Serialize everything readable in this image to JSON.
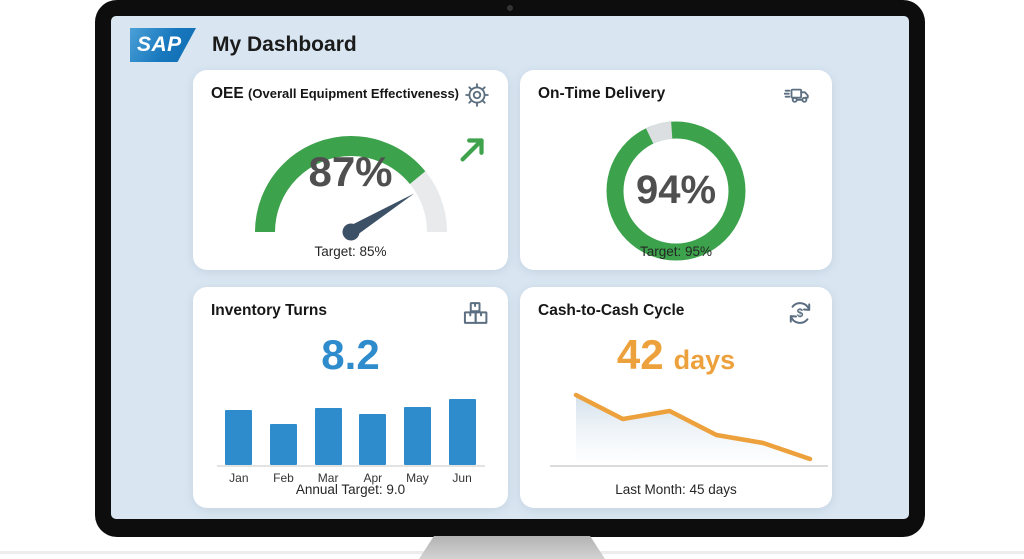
{
  "header": {
    "brand": "SAP",
    "title": "My Dashboard"
  },
  "cards": {
    "oee": {
      "title": "OEE",
      "subtitle": "(Overall Equipment Effectiveness)",
      "icon": "gear-icon",
      "value": "87%",
      "target": "Target: 85%"
    },
    "delivery": {
      "title": "On-Time Delivery",
      "icon": "truck-icon",
      "value": "94%",
      "target": "Target: 95%"
    },
    "inventory": {
      "title": "Inventory Turns",
      "icon": "boxes-icon",
      "value": "8.2",
      "target": "Annual Target: 9.0"
    },
    "cash": {
      "title": "Cash-to-Cash Cycle",
      "icon": "dollar-cycle-icon",
      "value": "42",
      "unit": "days",
      "target": "Last Month: 45 days"
    }
  },
  "chart_data": [
    {
      "id": "oee-gauge",
      "type": "gauge",
      "title": "OEE (Overall Equipment Effectiveness)",
      "value": 87,
      "min": 0,
      "max": 100,
      "unit": "%",
      "target": 85
    },
    {
      "id": "on-time-delivery-donut",
      "type": "donut",
      "title": "On-Time Delivery",
      "value": 94,
      "max": 100,
      "unit": "%",
      "target": 95
    },
    {
      "id": "inventory-turns-bars",
      "type": "bar",
      "title": "Inventory Turns",
      "categories": [
        "Jan",
        "Feb",
        "Mar",
        "Apr",
        "May",
        "Jun"
      ],
      "values": [
        7.5,
        5.6,
        7.8,
        7.0,
        8.0,
        9.0
      ],
      "current": 8.2,
      "annual_target": 9.0,
      "ylim": [
        0,
        9.5
      ]
    },
    {
      "id": "cash-to-cash-line",
      "type": "area",
      "title": "Cash-to-Cash Cycle",
      "values": [
        50,
        47,
        48,
        45,
        44,
        42
      ],
      "current": 42,
      "unit": "days",
      "last_month": 45
    }
  ],
  "colors": {
    "green": "#3ca24b",
    "track": "#e8eaec",
    "blue": "#2e8ccd",
    "orange": "#eda13c",
    "needle": "#3d5166",
    "icon": "#5b6f80",
    "screen": "#d9e6f2",
    "card": "#ffffff",
    "ink": "#1b1b1b",
    "value": "#4f4f4f"
  }
}
